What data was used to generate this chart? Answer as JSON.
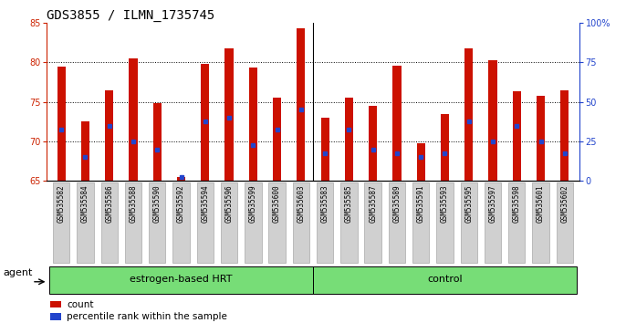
{
  "title": "GDS3855 / ILMN_1735745",
  "samples": [
    "GSM535582",
    "GSM535584",
    "GSM535586",
    "GSM535588",
    "GSM535590",
    "GSM535592",
    "GSM535594",
    "GSM535596",
    "GSM535599",
    "GSM535600",
    "GSM535603",
    "GSM535583",
    "GSM535585",
    "GSM535587",
    "GSM535589",
    "GSM535591",
    "GSM535593",
    "GSM535595",
    "GSM535597",
    "GSM535598",
    "GSM535601",
    "GSM535602"
  ],
  "counts": [
    79.4,
    72.5,
    76.5,
    80.5,
    74.8,
    65.5,
    79.8,
    81.7,
    79.3,
    75.5,
    84.3,
    73.0,
    75.5,
    74.5,
    79.5,
    69.8,
    73.5,
    81.8,
    80.2,
    76.3,
    75.8,
    76.5
  ],
  "percentile_ranks": [
    71.5,
    68.0,
    72.0,
    70.0,
    69.0,
    65.5,
    72.5,
    73.0,
    69.5,
    71.5,
    74.0,
    68.5,
    71.5,
    69.0,
    68.5,
    68.0,
    68.5,
    72.5,
    70.0,
    72.0,
    70.0,
    68.5
  ],
  "group_labels": [
    "estrogen-based HRT",
    "control"
  ],
  "group_ranges": [
    [
      0,
      10
    ],
    [
      11,
      21
    ]
  ],
  "ylim_left": [
    65,
    85
  ],
  "ylim_right": [
    0,
    100
  ],
  "yticks_left": [
    65,
    70,
    75,
    80,
    85
  ],
  "yticks_right": [
    0,
    25,
    50,
    75,
    100
  ],
  "bar_color": "#cc1100",
  "dot_color": "#2244cc",
  "bg_color": "#ffffff",
  "tick_label_bg": "#d0d0d0",
  "group_bg_color": "#77dd77",
  "agent_label": "agent",
  "legend_count": "count",
  "legend_percentile": "percentile rank within the sample",
  "title_fontsize": 10,
  "tick_fontsize": 7,
  "group_fontsize": 8,
  "legend_fontsize": 7.5
}
